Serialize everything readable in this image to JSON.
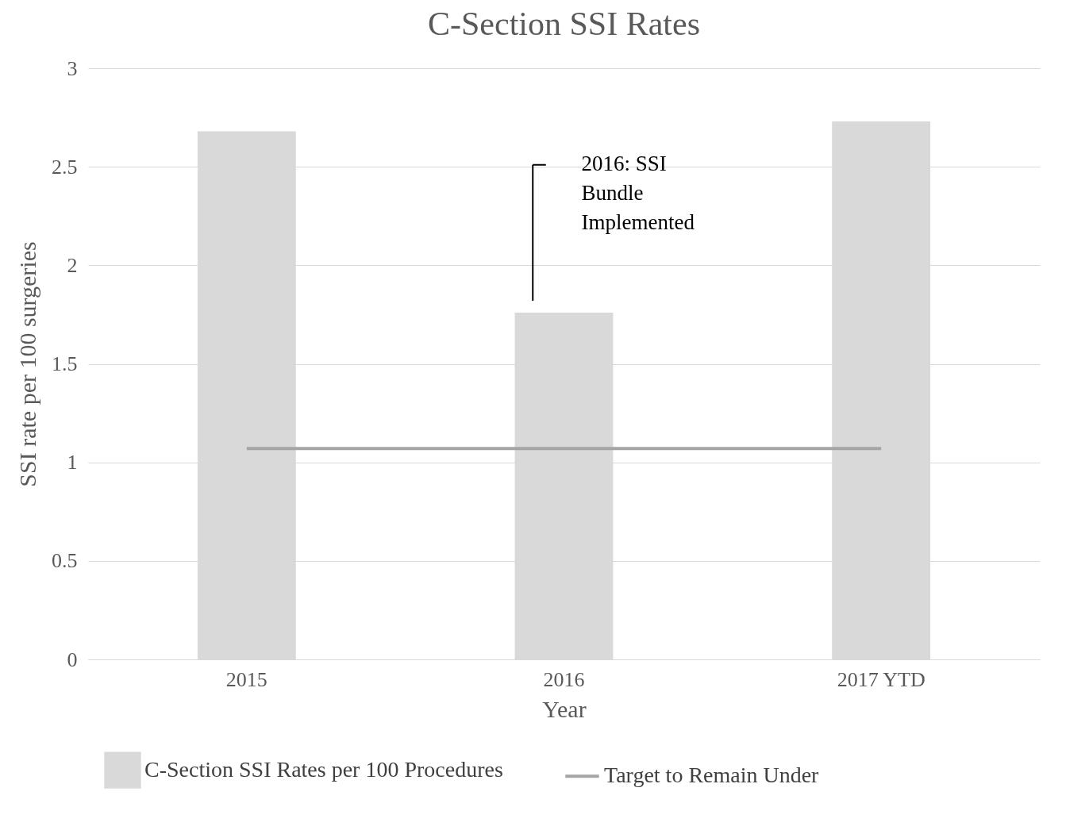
{
  "chart_data": {
    "type": "bar",
    "title": "C-Section SSI Rates",
    "xlabel": "Year",
    "ylabel": "SSI rate per 100 surgeries",
    "categories": [
      "2015",
      "2016",
      "2017 YTD"
    ],
    "series": [
      {
        "name": "C-Section SSI Rates per 100 Procedures",
        "color": "#d9d9d9",
        "values": [
          2.68,
          1.76,
          2.73
        ]
      },
      {
        "name": "Target to Remain Under",
        "type": "line",
        "color": "#a5a5a5",
        "values": [
          1.07,
          1.07,
          1.07
        ]
      }
    ],
    "ylim": [
      0,
      3
    ],
    "yticks": [
      0,
      0.5,
      1,
      1.5,
      2,
      2.5,
      3
    ],
    "grid": "y",
    "legend": "bottom",
    "annotations": [
      "2016: SSI Bundle Implemented"
    ]
  }
}
